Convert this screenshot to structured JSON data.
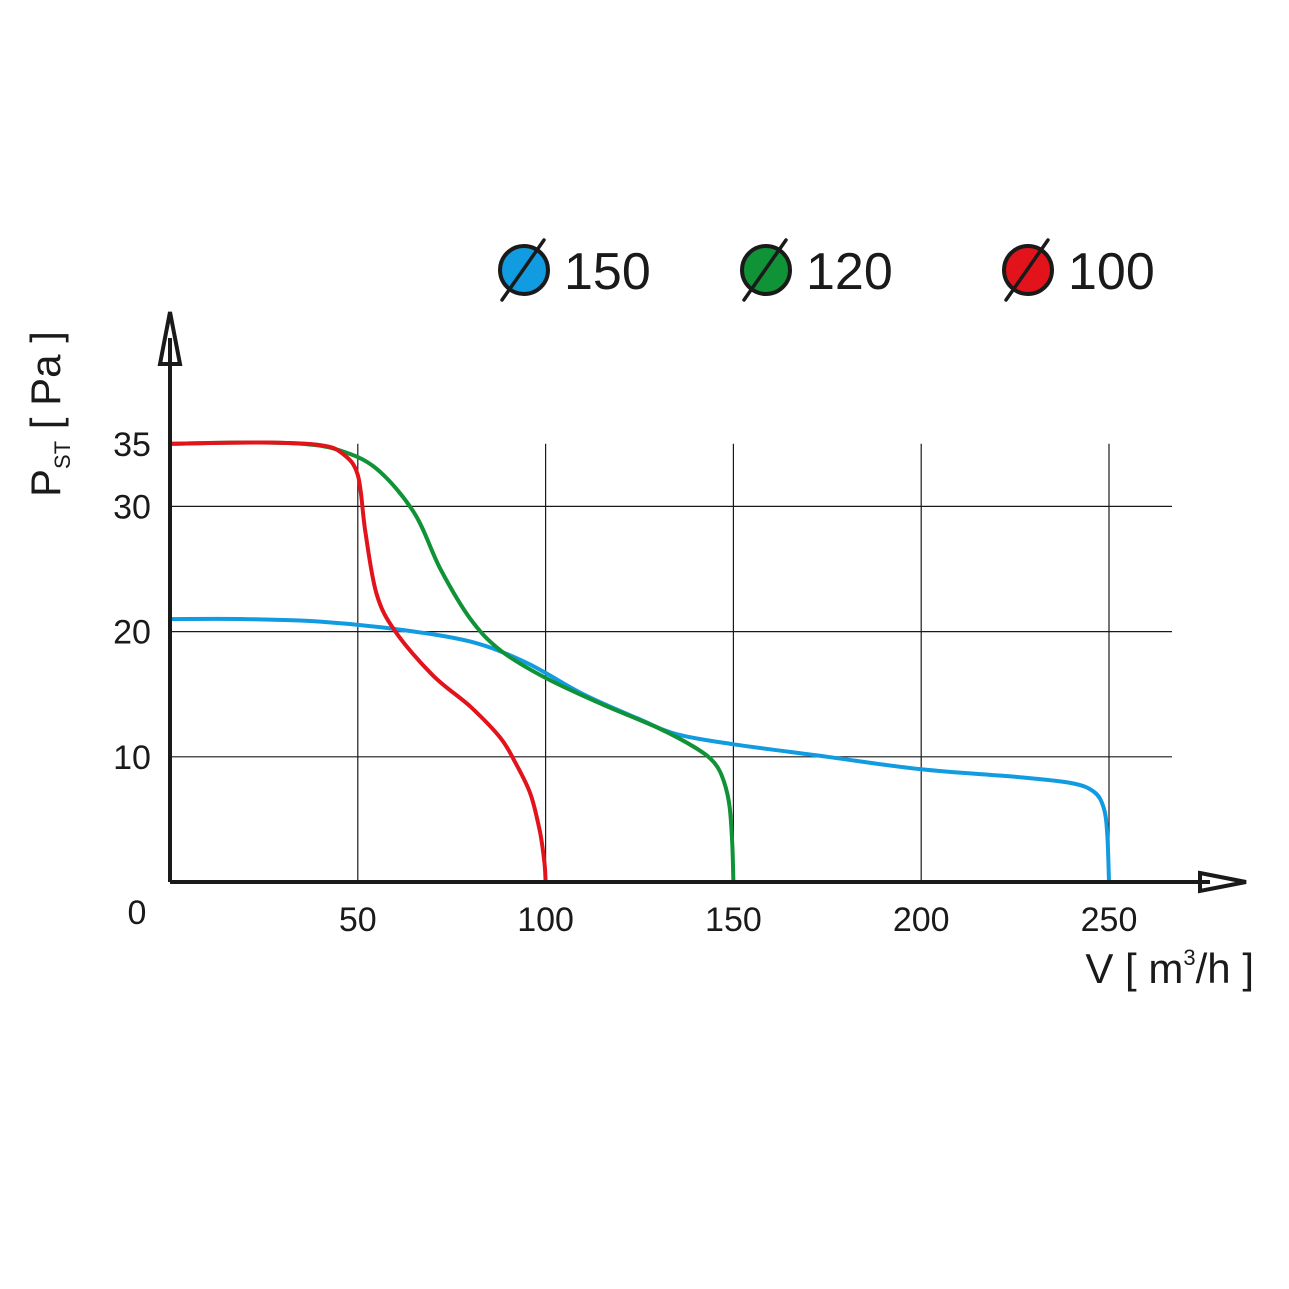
{
  "chart_data": {
    "type": "line",
    "xlabel_main": "V [ m",
    "xlabel_sup": "3",
    "xlabel_end": "/h ]",
    "ylabel_main": "P",
    "ylabel_sub": "ST",
    "ylabel_end": " [ Pa ]",
    "origin_label": "0",
    "xlim": [
      0,
      270
    ],
    "ylim": [
      0,
      35
    ],
    "x_ticks": [
      {
        "value": 50,
        "label": "50"
      },
      {
        "value": 100,
        "label": "100"
      },
      {
        "value": 150,
        "label": "150"
      },
      {
        "value": 200,
        "label": "200"
      },
      {
        "value": 250,
        "label": "250"
      }
    ],
    "y_ticks": [
      {
        "value": 10,
        "label": "10"
      },
      {
        "value": 20,
        "label": "20"
      },
      {
        "value": 30,
        "label": "30"
      },
      {
        "value": 35,
        "label": "35"
      }
    ],
    "grid": true,
    "legend_position": "top-right",
    "series": [
      {
        "name": "150",
        "color": "#119be0",
        "points": [
          [
            0,
            21
          ],
          [
            20,
            21
          ],
          [
            40,
            20.8
          ],
          [
            60,
            20.2
          ],
          [
            80,
            19.2
          ],
          [
            95,
            17.5
          ],
          [
            110,
            15
          ],
          [
            125,
            13
          ],
          [
            135,
            11.8
          ],
          [
            150,
            11
          ],
          [
            175,
            10
          ],
          [
            200,
            9
          ],
          [
            225,
            8.4
          ],
          [
            240,
            7.9
          ],
          [
            246,
            7.2
          ],
          [
            248.5,
            6
          ],
          [
            249.5,
            4
          ],
          [
            250,
            0
          ]
        ]
      },
      {
        "name": "120",
        "color": "#109237",
        "points": [
          [
            0,
            35
          ],
          [
            20,
            35.1
          ],
          [
            35,
            35
          ],
          [
            45,
            34.5
          ],
          [
            55,
            33
          ],
          [
            65,
            29.5
          ],
          [
            72,
            25
          ],
          [
            80,
            21
          ],
          [
            88,
            18.5
          ],
          [
            100,
            16.3
          ],
          [
            115,
            14.2
          ],
          [
            130,
            12.3
          ],
          [
            140,
            10.7
          ],
          [
            145,
            9.5
          ],
          [
            147.5,
            8
          ],
          [
            149,
            6
          ],
          [
            149.7,
            3
          ],
          [
            150,
            0
          ]
        ]
      },
      {
        "name": "100",
        "color": "#e2131b",
        "points": [
          [
            0,
            35
          ],
          [
            25,
            35.1
          ],
          [
            40,
            34.9
          ],
          [
            46,
            34.2
          ],
          [
            50,
            32.5
          ],
          [
            52,
            28
          ],
          [
            55,
            23
          ],
          [
            60,
            20
          ],
          [
            70,
            16.5
          ],
          [
            80,
            14
          ],
          [
            88,
            11.5
          ],
          [
            92,
            9.5
          ],
          [
            96,
            7
          ],
          [
            98.5,
            4
          ],
          [
            99.7,
            1.5
          ],
          [
            100,
            0
          ]
        ]
      }
    ]
  }
}
